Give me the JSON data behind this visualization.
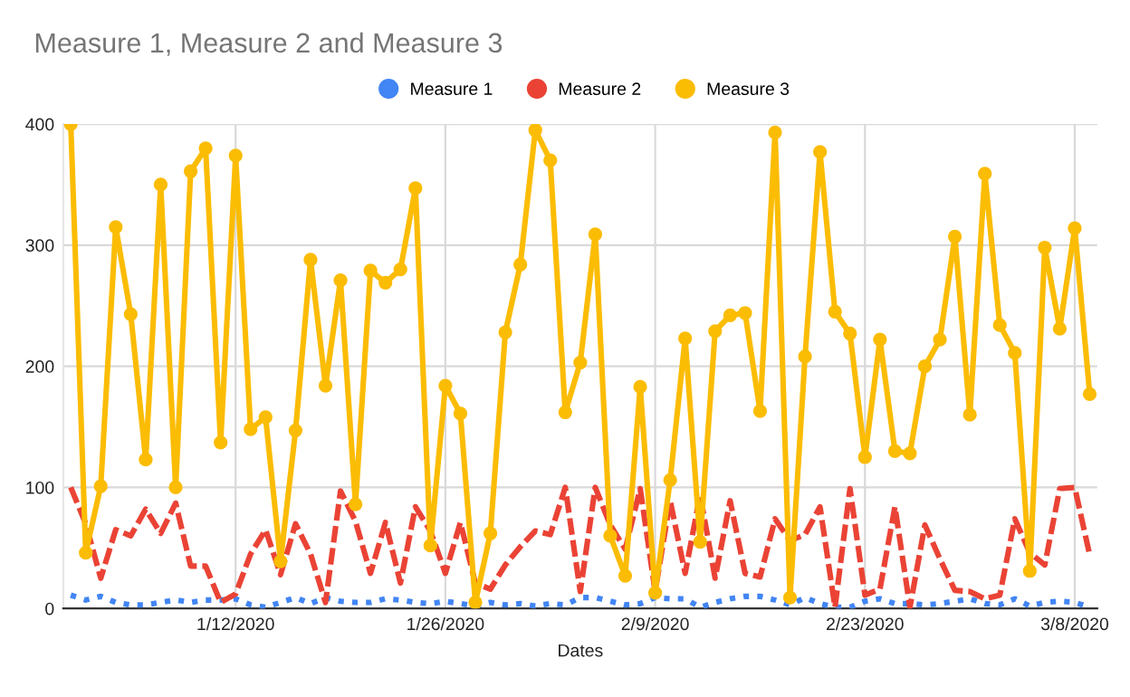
{
  "chart_data": {
    "type": "line",
    "title": "Measure 1, Measure 2 and Measure 3",
    "xlabel": "Dates",
    "x": [
      "2020-01-01",
      "2020-01-02",
      "2020-01-03",
      "2020-01-04",
      "2020-01-05",
      "2020-01-06",
      "2020-01-07",
      "2020-01-08",
      "2020-01-09",
      "2020-01-10",
      "2020-01-11",
      "2020-01-12",
      "2020-01-13",
      "2020-01-14",
      "2020-01-15",
      "2020-01-16",
      "2020-01-17",
      "2020-01-18",
      "2020-01-19",
      "2020-01-20",
      "2020-01-21",
      "2020-01-22",
      "2020-01-23",
      "2020-01-24",
      "2020-01-25",
      "2020-01-26",
      "2020-01-27",
      "2020-01-28",
      "2020-01-29",
      "2020-01-30",
      "2020-01-31",
      "2020-02-01",
      "2020-02-02",
      "2020-02-03",
      "2020-02-04",
      "2020-02-05",
      "2020-02-06",
      "2020-02-07",
      "2020-02-08",
      "2020-02-09",
      "2020-02-10",
      "2020-02-11",
      "2020-02-12",
      "2020-02-13",
      "2020-02-14",
      "2020-02-15",
      "2020-02-16",
      "2020-02-17",
      "2020-02-18",
      "2020-02-19",
      "2020-02-20",
      "2020-02-21",
      "2020-02-22",
      "2020-02-23",
      "2020-02-24",
      "2020-02-25",
      "2020-02-26",
      "2020-02-27",
      "2020-02-28",
      "2020-02-29",
      "2020-03-01",
      "2020-03-02",
      "2020-03-03",
      "2020-03-04",
      "2020-03-05",
      "2020-03-06",
      "2020-03-07",
      "2020-03-08",
      "2020-03-09"
    ],
    "series": [
      {
        "name": "Measure 1",
        "color": "#4285f4",
        "line_style": "dotted",
        "marker": "none",
        "values": [
          11,
          7,
          10,
          5,
          3,
          3,
          5,
          7,
          5,
          7,
          7,
          8,
          3,
          1,
          5,
          9,
          4,
          9,
          6,
          5,
          5,
          8,
          7,
          5,
          4,
          6,
          4,
          2,
          5,
          3,
          4,
          2,
          4,
          3,
          9,
          9,
          6,
          3,
          4,
          9,
          8,
          8,
          1,
          5,
          8,
          10,
          10,
          7,
          3,
          9,
          4,
          1,
          1,
          6,
          8,
          4,
          4,
          3,
          4,
          6,
          8,
          4,
          3,
          8,
          2,
          5,
          6,
          5,
          1
        ]
      },
      {
        "name": "Measure 2",
        "color": "#ea4335",
        "line_style": "dashed",
        "marker": "none",
        "values": [
          100,
          70,
          25,
          65,
          60,
          82,
          62,
          87,
          35,
          35,
          5,
          12,
          45,
          65,
          28,
          70,
          45,
          5,
          97,
          72,
          29,
          71,
          21,
          84,
          64,
          29,
          71,
          21,
          16,
          36,
          51,
          64,
          61,
          100,
          14,
          100,
          69,
          49,
          99,
          14,
          89,
          29,
          94,
          25,
          89,
          29,
          26,
          74,
          56,
          61,
          84,
          1,
          99,
          11,
          16,
          84,
          1,
          69,
          41,
          15,
          14,
          8,
          11,
          74,
          46,
          36,
          99,
          100,
          44
        ]
      },
      {
        "name": "Measure 3",
        "color": "#fbbc04",
        "line_style": "solid",
        "marker": "circle",
        "values": [
          400,
          46,
          101,
          315,
          243,
          123,
          350,
          100,
          361,
          380,
          137,
          374,
          148,
          158,
          39,
          147,
          288,
          184,
          271,
          86,
          279,
          269,
          280,
          347,
          52,
          184,
          161,
          5,
          62,
          228,
          284,
          395,
          370,
          162,
          203,
          309,
          60,
          27,
          183,
          13,
          106,
          223,
          55,
          229,
          242,
          244,
          163,
          393,
          9,
          208,
          377,
          245,
          227,
          125,
          222,
          130,
          128,
          200,
          222,
          307,
          160,
          359,
          234,
          211,
          31,
          298,
          231,
          314,
          177
        ]
      }
    ],
    "xlim": [
      "2019-12-31T12:00",
      "2020-03-09T12:00"
    ],
    "xticks": [
      {
        "value": "2020-01-12",
        "label": "1/12/2020"
      },
      {
        "value": "2020-01-26",
        "label": "1/26/2020"
      },
      {
        "value": "2020-02-09",
        "label": "2/9/2020"
      },
      {
        "value": "2020-02-23",
        "label": "2/23/2020"
      },
      {
        "value": "2020-03-08",
        "label": "3/8/2020"
      }
    ],
    "ylim": [
      0,
      400
    ],
    "yticks": [
      0,
      100,
      200,
      300,
      400
    ],
    "grid": true,
    "legend": "top"
  }
}
